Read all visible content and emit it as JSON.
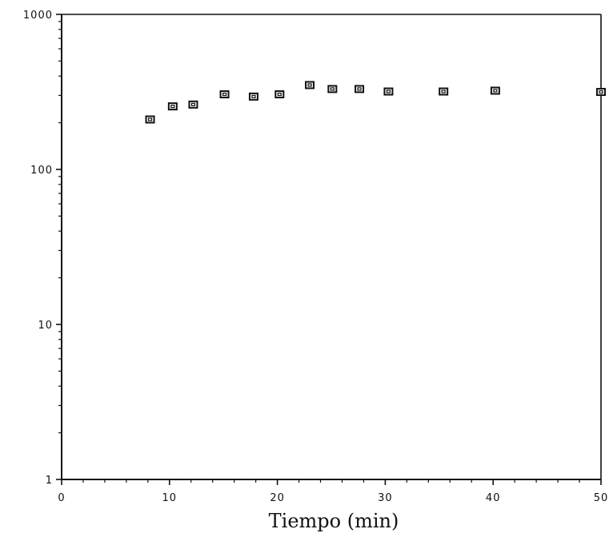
{
  "chart_data": {
    "type": "scatter",
    "xlabel": "Tiempo (min)",
    "ylabel": "",
    "xlim": [
      0,
      50
    ],
    "ylim": [
      1,
      1000
    ],
    "y_scale": "log",
    "x_ticks": [
      0,
      10,
      20,
      30,
      40,
      50
    ],
    "x_tick_labels": [
      "0",
      "10",
      "20",
      "30",
      "40",
      "50"
    ],
    "y_ticks": [
      1,
      10,
      100,
      1000
    ],
    "y_tick_labels": [
      "1",
      "10",
      "100",
      "1000"
    ],
    "grid": false,
    "marker": "square",
    "points": [
      {
        "x": 8.2,
        "y": 210
      },
      {
        "x": 10.3,
        "y": 255
      },
      {
        "x": 12.2,
        "y": 262
      },
      {
        "x": 15.1,
        "y": 305
      },
      {
        "x": 17.8,
        "y": 295
      },
      {
        "x": 20.2,
        "y": 305
      },
      {
        "x": 23.0,
        "y": 350
      },
      {
        "x": 25.1,
        "y": 330
      },
      {
        "x": 27.6,
        "y": 330
      },
      {
        "x": 30.3,
        "y": 318
      },
      {
        "x": 35.4,
        "y": 318
      },
      {
        "x": 40.2,
        "y": 322
      },
      {
        "x": 50.0,
        "y": 316
      }
    ]
  }
}
